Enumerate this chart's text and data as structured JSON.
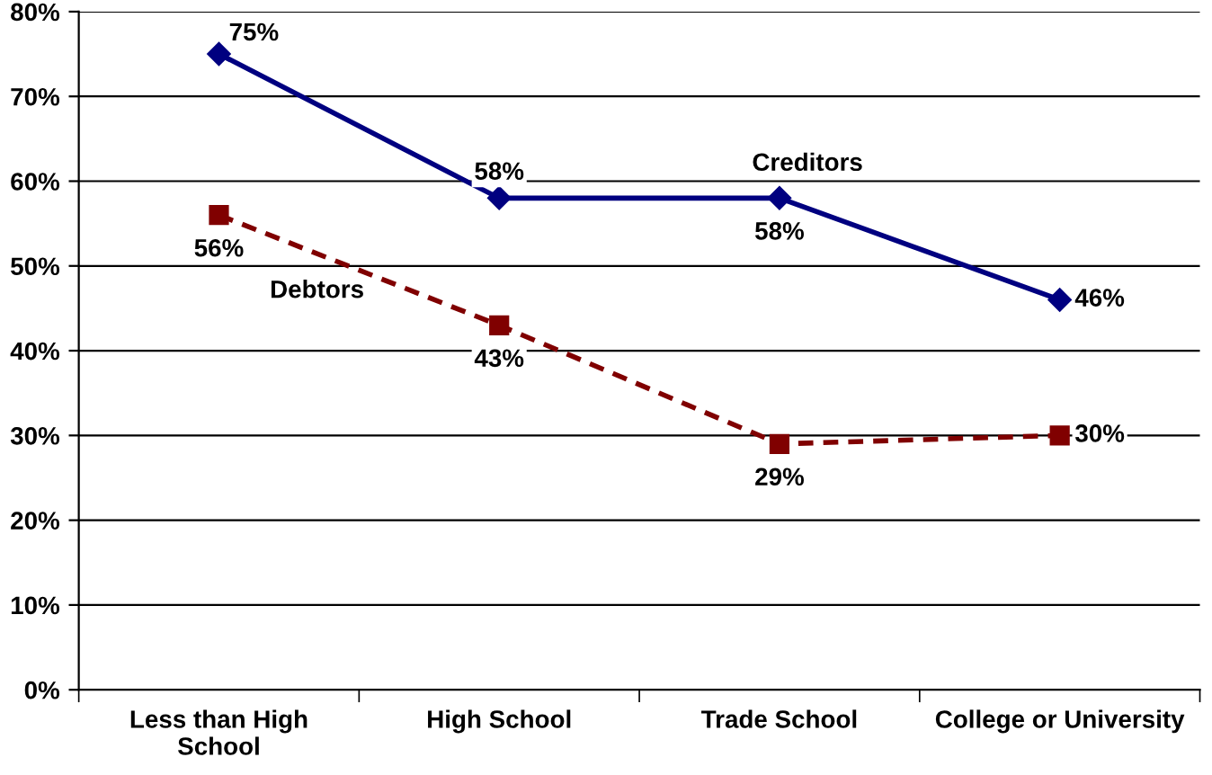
{
  "chart_data": {
    "type": "line",
    "categories": [
      "Less than High\nSchool",
      "High School",
      "Trade School",
      "College or University"
    ],
    "series": [
      {
        "name": "Creditors",
        "color": "#000080",
        "values": [
          75,
          58,
          58,
          46
        ],
        "value_labels": [
          "75%",
          "58%",
          "58%",
          "46%"
        ],
        "marker": "diamond",
        "line_style": "solid"
      },
      {
        "name": "Debtors",
        "color": "#800000",
        "values": [
          56,
          43,
          29,
          30
        ],
        "value_labels": [
          "56%",
          "43%",
          "29%",
          "30%"
        ],
        "marker": "square",
        "line_style": "dashed"
      }
    ],
    "ylim": [
      0,
      80
    ],
    "yticks": [
      {
        "value": 0,
        "label": "0%"
      },
      {
        "value": 10,
        "label": "10%"
      },
      {
        "value": 20,
        "label": "20%"
      },
      {
        "value": 30,
        "label": "30%"
      },
      {
        "value": 40,
        "label": "40%"
      },
      {
        "value": 50,
        "label": "50%"
      },
      {
        "value": 60,
        "label": "60%"
      },
      {
        "value": 70,
        "label": "70%"
      },
      {
        "value": 80,
        "label": "80%"
      }
    ],
    "grid": "y",
    "legend": false
  }
}
